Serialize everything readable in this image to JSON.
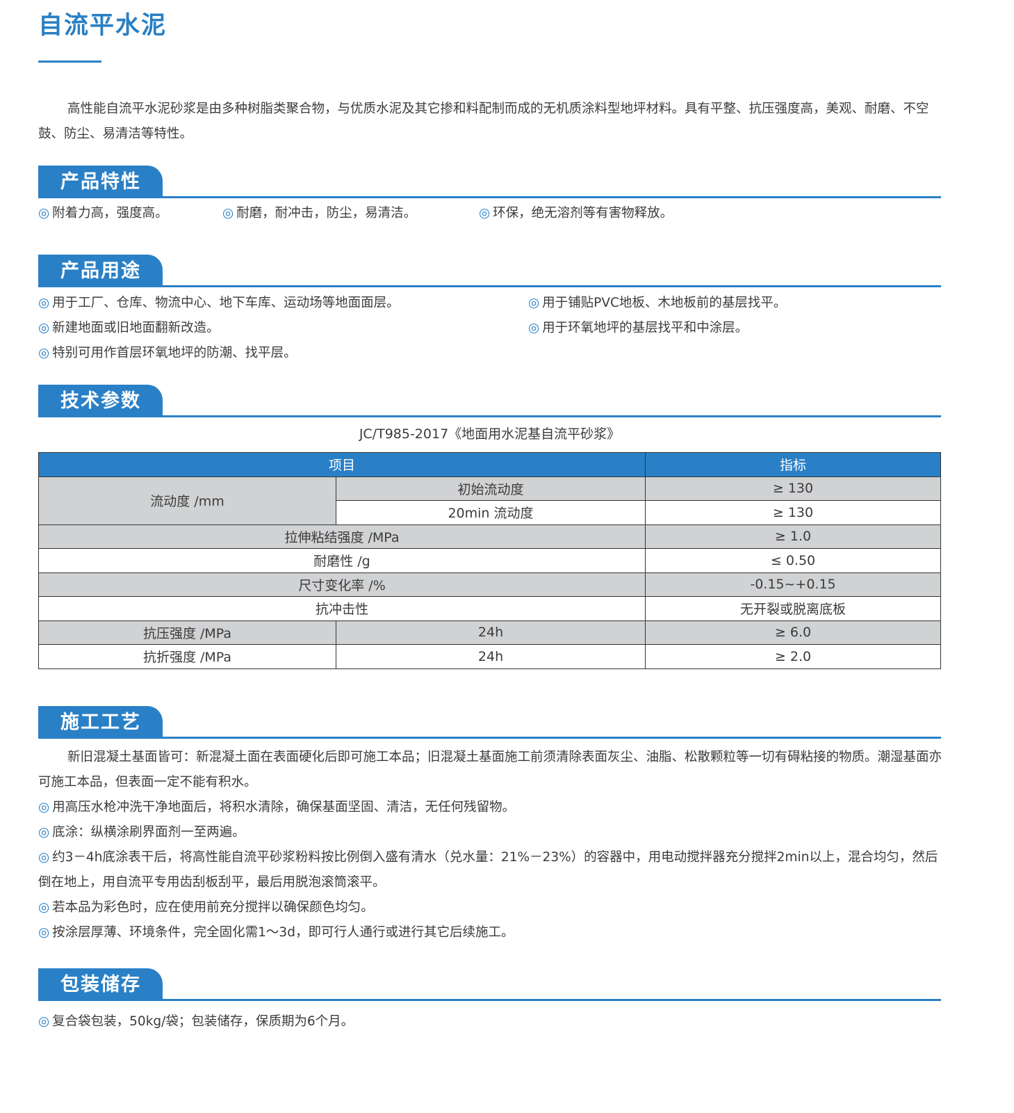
{
  "title": "自流平水泥",
  "intro": "高性能自流平水泥砂浆是由多种树脂类聚合物，与优质水泥及其它掺和料配制而成的无机质涂料型地坪材料。具有平整、抗压强度高，美观、耐磨、不空鼓、防尘、易清洁等特性。",
  "bullet": "◎",
  "colors": {
    "accent": "#2a80c6",
    "table_gray": "#d1d2d4"
  },
  "features": {
    "heading": "产品特性",
    "items": [
      "附着力高，强度高。",
      "耐磨，耐冲击，防尘，易清洁。",
      "环保，绝无溶剂等有害物释放。"
    ]
  },
  "uses": {
    "heading": "产品用途",
    "items": [
      "用于工厂、仓库、物流中心、地下车库、运动场等地面面层。",
      "用于铺贴PVC地板、木地板前的基层找平。",
      "新建地面或旧地面翻新改造。",
      "用于环氧地坪的基层找平和中涂层。",
      "特别可用作首层环氧地坪的防潮、找平层。"
    ]
  },
  "tech": {
    "heading": "技术参数",
    "standard": "JC/T985-2017《地面用水泥基自流平砂浆》",
    "headers": [
      "项目",
      "指标"
    ],
    "rows": [
      [
        "流动度 /mm",
        "初始流动度",
        "≥ 130"
      ],
      [
        "",
        "20min 流动度",
        "≥ 130"
      ],
      [
        "拉伸粘结强度 /MPa",
        "",
        "≥ 1.0"
      ],
      [
        "耐磨性 /g",
        "",
        "≤ 0.50"
      ],
      [
        "尺寸变化率 /%",
        "",
        "-0.15~+0.15"
      ],
      [
        "抗冲击性",
        "",
        "无开裂或脱离底板"
      ],
      [
        "抗压强度 /MPa",
        "24h",
        "≥ 6.0"
      ],
      [
        "抗折强度 /MPa",
        "24h",
        "≥ 2.0"
      ]
    ]
  },
  "construction": {
    "heading": "施工工艺",
    "intro": "新旧混凝土基面皆可：新混凝土面在表面硬化后即可施工本品；旧混凝土基面施工前须清除表面灰尘、油脂、松散颗粒等一切有碍粘接的物质。潮湿基面亦可施工本品，但表面一定不能有积水。",
    "items": [
      "用高压水枪冲洗干净地面后，将积水清除，确保基面坚固、清洁，无任何残留物。",
      "底涂：纵横涂刷界面剂一至两遍。",
      "约3－4h底涂表干后，将高性能自流平砂浆粉料按比例倒入盛有清水（兑水量：21%－23%）的容器中，用电动搅拌器充分搅拌2min以上，混合均匀，然后倒在地上，用自流平专用齿刮板刮平，最后用脱泡滚筒滚平。",
      "若本品为彩色时，应在使用前充分搅拌以确保颜色均匀。",
      "按涂层厚薄、环境条件，完全固化需1～3d，即可行人通行或进行其它后续施工。"
    ]
  },
  "packaging": {
    "heading": "包装储存",
    "items": [
      "复合袋包装，50kg/袋；包装储存，保质期为6个月。"
    ]
  }
}
